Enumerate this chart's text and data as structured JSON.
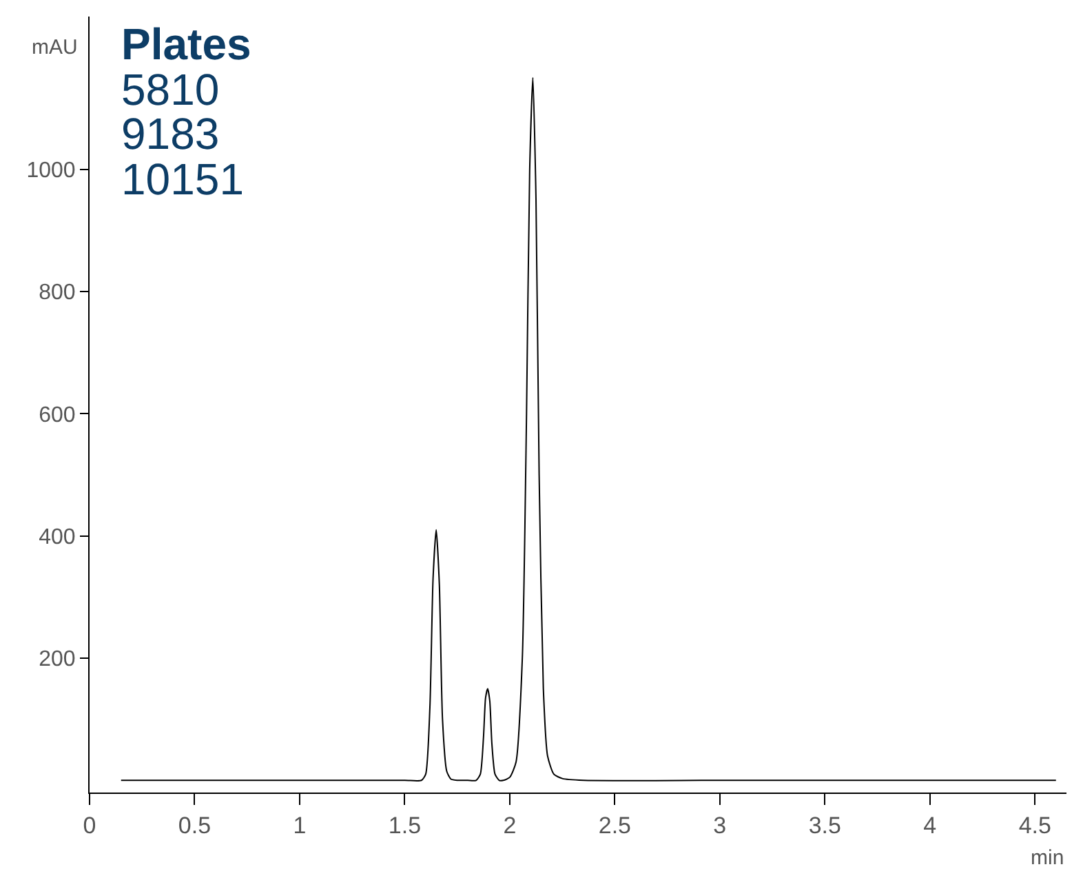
{
  "chart_data": {
    "type": "line",
    "xlabel": "min",
    "ylabel": "mAU",
    "annotations": [
      "Plates",
      "5810",
      "9183",
      "10151"
    ],
    "x": [
      0.15,
      0.5,
      1.0,
      1.5,
      1.58,
      1.6,
      1.62,
      1.635,
      1.65,
      1.665,
      1.68,
      1.7,
      1.72,
      1.75,
      1.8,
      1.84,
      1.86,
      1.875,
      1.885,
      1.895,
      1.905,
      1.915,
      1.93,
      1.95,
      1.97,
      2.0,
      2.03,
      2.06,
      2.08,
      2.095,
      2.11,
      2.125,
      2.14,
      2.16,
      2.18,
      2.21,
      2.25,
      2.35,
      3.0,
      4.0,
      4.6
    ],
    "series": [
      {
        "color": "#000000",
        "values": [
          0,
          0,
          0,
          0,
          0,
          10,
          120,
          330,
          410,
          320,
          100,
          15,
          2,
          0,
          0,
          0,
          10,
          70,
          135,
          150,
          130,
          60,
          10,
          0,
          0,
          5,
          30,
          200,
          600,
          1000,
          1150,
          950,
          500,
          150,
          40,
          10,
          3,
          0,
          0,
          0,
          0
        ]
      }
    ],
    "xlim": [
      0,
      4.65
    ],
    "xticks": [
      0,
      0.5,
      1,
      1.5,
      2,
      2.5,
      3,
      3.5,
      4,
      4.5
    ],
    "ylim": [
      -20,
      1250
    ],
    "yticks": [
      200,
      400,
      600,
      800,
      1000
    ],
    "legend": false,
    "marker": "none",
    "line_style": "solid"
  }
}
